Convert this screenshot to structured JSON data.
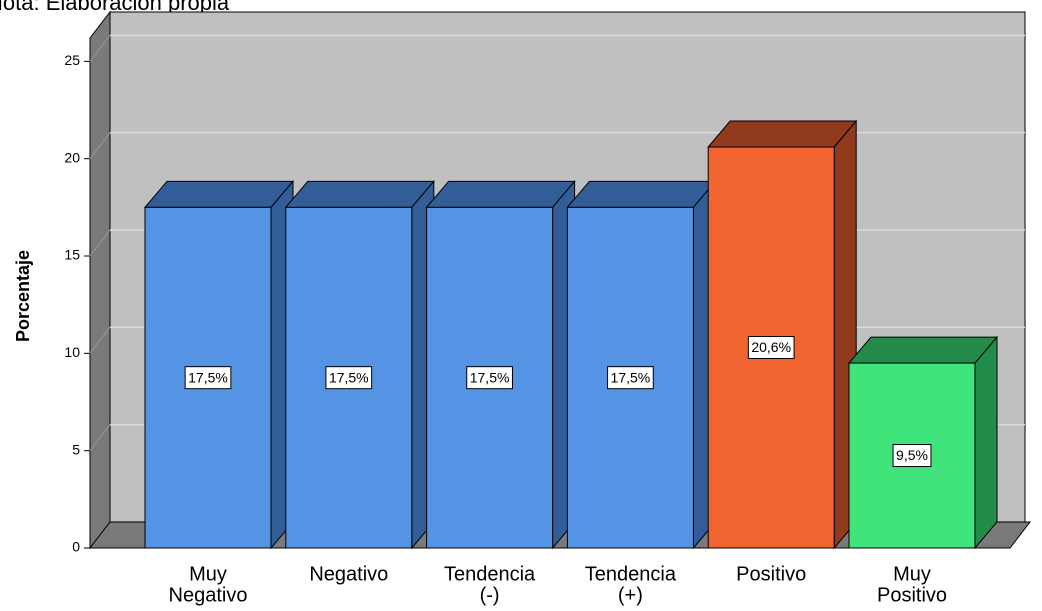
{
  "chart_data": {
    "type": "bar3d",
    "note": "Nota: Elaboración propia",
    "y_label": "Porcentaje",
    "categories": [
      [
        "Muy",
        "Negativo"
      ],
      [
        "Negativo"
      ],
      [
        "Tendencia",
        "(-)"
      ],
      [
        "Tendencia",
        "(+)"
      ],
      [
        "Positivo"
      ],
      [
        "Muy",
        "Positivo"
      ]
    ],
    "values": [
      17.5,
      17.5,
      17.5,
      17.5,
      20.6,
      9.5
    ],
    "value_labels": [
      "17,5%",
      "17,5%",
      "17,5%",
      "17,5%",
      "20,6%",
      "9,5%"
    ],
    "colors": [
      "#5594e4",
      "#5594e4",
      "#5594e4",
      "#5594e4",
      "#f26430",
      "#40e47a"
    ],
    "shade_colors": [
      "#335d96",
      "#335d96",
      "#335d96",
      "#335d96",
      "#913a1c",
      "#248c4a"
    ],
    "ylim": [
      0,
      26.2
    ],
    "yticks": [
      0,
      5,
      10,
      15,
      20,
      25
    ],
    "grid": true
  }
}
